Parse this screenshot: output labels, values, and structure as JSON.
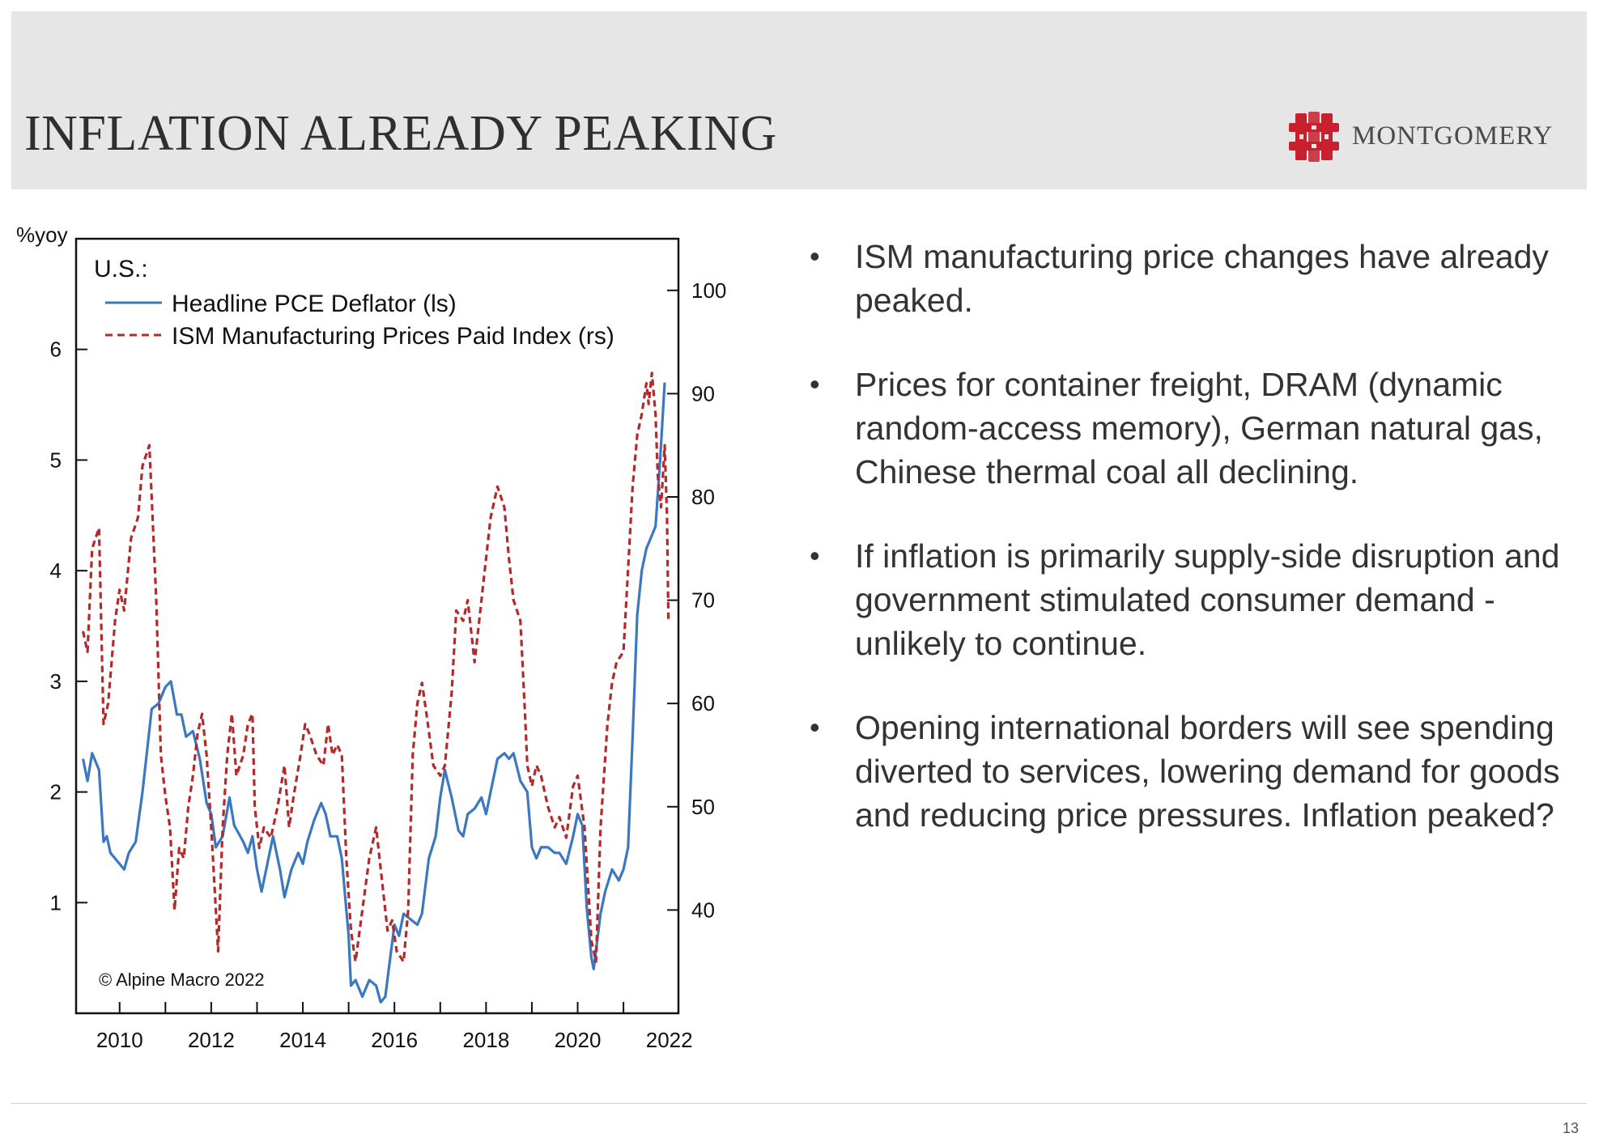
{
  "slide": {
    "title": "INFLATION ALREADY PEAKING",
    "brand": "MONTGOMERY",
    "page_number": "13",
    "colors": {
      "header_bg": "#e6e6e6",
      "logo": "#c8202f"
    },
    "logo_icon": "montgomery-monogram-icon",
    "bullets": [
      "ISM manufacturing price changes have already peaked.",
      "Prices for container freight, DRAM (dynamic random-access memory), German natural gas, Chinese thermal coal all declining.",
      "If inflation is primarily supply-side disruption and government stimulated consumer demand - unlikely to continue.",
      "Opening international borders will see spending diverted to services, lowering demand for goods and reducing price pressures.  Inflation peaked?"
    ]
  },
  "chart_data": {
    "type": "line",
    "left_unit_label": "%yoy",
    "legend_title": "U.S.:",
    "legend_position": "top-left",
    "credit": "© Alpine Macro 2022",
    "grid": false,
    "x_ticks": [
      "2010",
      "2012",
      "2014",
      "2016",
      "2018",
      "2020",
      "2022"
    ],
    "xlim": [
      2009.05,
      2022.2
    ],
    "left_axis": {
      "ylim": [
        0,
        7
      ],
      "ticks": [
        1,
        2,
        3,
        4,
        5,
        6
      ]
    },
    "right_axis": {
      "ylim": [
        30,
        105
      ],
      "ticks": [
        40,
        50,
        60,
        70,
        80,
        90,
        100
      ]
    },
    "series": [
      {
        "name": "Headline PCE Deflator (ls)",
        "axis": "left",
        "color": "#3b78c0",
        "style": "solid",
        "points": [
          [
            2009.2,
            2.3
          ],
          [
            2009.3,
            2.1
          ],
          [
            2009.4,
            2.35
          ],
          [
            2009.55,
            2.2
          ],
          [
            2009.65,
            1.55
          ],
          [
            2009.72,
            1.6
          ],
          [
            2009.8,
            1.45
          ],
          [
            2010.0,
            1.35
          ],
          [
            2010.1,
            1.3
          ],
          [
            2010.2,
            1.45
          ],
          [
            2010.35,
            1.55
          ],
          [
            2010.5,
            2.0
          ],
          [
            2010.7,
            2.75
          ],
          [
            2010.85,
            2.8
          ],
          [
            2011.0,
            2.95
          ],
          [
            2011.12,
            3.0
          ],
          [
            2011.25,
            2.7
          ],
          [
            2011.35,
            2.7
          ],
          [
            2011.45,
            2.5
          ],
          [
            2011.6,
            2.55
          ],
          [
            2011.75,
            2.3
          ],
          [
            2011.9,
            1.9
          ],
          [
            2012.0,
            1.8
          ],
          [
            2012.1,
            1.5
          ],
          [
            2012.25,
            1.6
          ],
          [
            2012.4,
            1.95
          ],
          [
            2012.5,
            1.7
          ],
          [
            2012.7,
            1.55
          ],
          [
            2012.8,
            1.45
          ],
          [
            2012.9,
            1.6
          ],
          [
            2013.0,
            1.3
          ],
          [
            2013.1,
            1.1
          ],
          [
            2013.2,
            1.3
          ],
          [
            2013.35,
            1.6
          ],
          [
            2013.5,
            1.3
          ],
          [
            2013.6,
            1.05
          ],
          [
            2013.75,
            1.3
          ],
          [
            2013.9,
            1.45
          ],
          [
            2014.0,
            1.35
          ],
          [
            2014.1,
            1.55
          ],
          [
            2014.25,
            1.75
          ],
          [
            2014.4,
            1.9
          ],
          [
            2014.5,
            1.8
          ],
          [
            2014.6,
            1.6
          ],
          [
            2014.75,
            1.6
          ],
          [
            2014.85,
            1.4
          ],
          [
            2015.0,
            0.7
          ],
          [
            2015.05,
            0.25
          ],
          [
            2015.15,
            0.3
          ],
          [
            2015.3,
            0.15
          ],
          [
            2015.45,
            0.3
          ],
          [
            2015.6,
            0.25
          ],
          [
            2015.7,
            0.1
          ],
          [
            2015.8,
            0.15
          ],
          [
            2016.0,
            0.8
          ],
          [
            2016.1,
            0.7
          ],
          [
            2016.2,
            0.9
          ],
          [
            2016.35,
            0.85
          ],
          [
            2016.5,
            0.8
          ],
          [
            2016.6,
            0.9
          ],
          [
            2016.75,
            1.4
          ],
          [
            2016.9,
            1.6
          ],
          [
            2017.0,
            1.95
          ],
          [
            2017.1,
            2.2
          ],
          [
            2017.25,
            1.95
          ],
          [
            2017.4,
            1.65
          ],
          [
            2017.5,
            1.6
          ],
          [
            2017.6,
            1.8
          ],
          [
            2017.75,
            1.85
          ],
          [
            2017.9,
            1.95
          ],
          [
            2018.0,
            1.8
          ],
          [
            2018.1,
            2.0
          ],
          [
            2018.25,
            2.3
          ],
          [
            2018.4,
            2.35
          ],
          [
            2018.5,
            2.3
          ],
          [
            2018.6,
            2.35
          ],
          [
            2018.75,
            2.1
          ],
          [
            2018.9,
            2.0
          ],
          [
            2019.0,
            1.5
          ],
          [
            2019.1,
            1.4
          ],
          [
            2019.2,
            1.5
          ],
          [
            2019.35,
            1.5
          ],
          [
            2019.5,
            1.45
          ],
          [
            2019.6,
            1.45
          ],
          [
            2019.75,
            1.35
          ],
          [
            2019.9,
            1.6
          ],
          [
            2020.0,
            1.8
          ],
          [
            2020.1,
            1.7
          ],
          [
            2020.2,
            0.95
          ],
          [
            2020.3,
            0.5
          ],
          [
            2020.35,
            0.4
          ],
          [
            2020.5,
            0.9
          ],
          [
            2020.6,
            1.1
          ],
          [
            2020.75,
            1.3
          ],
          [
            2020.9,
            1.2
          ],
          [
            2021.0,
            1.3
          ],
          [
            2021.1,
            1.5
          ],
          [
            2021.2,
            2.5
          ],
          [
            2021.3,
            3.6
          ],
          [
            2021.4,
            4.0
          ],
          [
            2021.5,
            4.2
          ],
          [
            2021.6,
            4.3
          ],
          [
            2021.7,
            4.4
          ],
          [
            2021.8,
            5.0
          ],
          [
            2021.9,
            5.7
          ]
        ]
      },
      {
        "name": "ISM Manufacturing Prices Paid Index (rs)",
        "axis": "right",
        "color": "#b22a2a",
        "style": "dashed",
        "points": [
          [
            2009.2,
            67
          ],
          [
            2009.3,
            65
          ],
          [
            2009.4,
            75
          ],
          [
            2009.55,
            77
          ],
          [
            2009.65,
            58
          ],
          [
            2009.75,
            60
          ],
          [
            2009.9,
            68
          ],
          [
            2010.0,
            71
          ],
          [
            2010.1,
            69
          ],
          [
            2010.25,
            76
          ],
          [
            2010.4,
            78
          ],
          [
            2010.5,
            83
          ],
          [
            2010.65,
            85
          ],
          [
            2010.8,
            70
          ],
          [
            2010.9,
            55
          ],
          [
            2011.0,
            51
          ],
          [
            2011.1,
            48
          ],
          [
            2011.2,
            40
          ],
          [
            2011.3,
            46
          ],
          [
            2011.4,
            45
          ],
          [
            2011.5,
            50
          ],
          [
            2011.6,
            53
          ],
          [
            2011.7,
            57
          ],
          [
            2011.8,
            59
          ],
          [
            2011.9,
            55
          ],
          [
            2012.0,
            48
          ],
          [
            2012.1,
            40
          ],
          [
            2012.15,
            36
          ],
          [
            2012.25,
            48
          ],
          [
            2012.35,
            55
          ],
          [
            2012.45,
            59
          ],
          [
            2012.55,
            53
          ],
          [
            2012.7,
            55
          ],
          [
            2012.8,
            58
          ],
          [
            2012.9,
            59
          ],
          [
            2012.95,
            50
          ],
          [
            2013.05,
            46
          ],
          [
            2013.15,
            48
          ],
          [
            2013.3,
            47
          ],
          [
            2013.45,
            50
          ],
          [
            2013.6,
            54
          ],
          [
            2013.7,
            48
          ],
          [
            2013.8,
            51
          ],
          [
            2013.95,
            55
          ],
          [
            2014.05,
            58
          ],
          [
            2014.15,
            57
          ],
          [
            2014.3,
            55
          ],
          [
            2014.45,
            54
          ],
          [
            2014.55,
            58
          ],
          [
            2014.65,
            55
          ],
          [
            2014.75,
            56
          ],
          [
            2014.85,
            55
          ],
          [
            2014.95,
            45
          ],
          [
            2015.05,
            38
          ],
          [
            2015.15,
            35
          ],
          [
            2015.3,
            40
          ],
          [
            2015.45,
            45
          ],
          [
            2015.6,
            48
          ],
          [
            2015.7,
            44
          ],
          [
            2015.85,
            38
          ],
          [
            2015.95,
            39
          ],
          [
            2016.05,
            36
          ],
          [
            2016.2,
            35
          ],
          [
            2016.3,
            40
          ],
          [
            2016.4,
            55
          ],
          [
            2016.5,
            60
          ],
          [
            2016.6,
            62
          ],
          [
            2016.7,
            59
          ],
          [
            2016.85,
            54
          ],
          [
            2017.0,
            53
          ],
          [
            2017.1,
            54
          ],
          [
            2017.25,
            61
          ],
          [
            2017.35,
            69
          ],
          [
            2017.5,
            68
          ],
          [
            2017.6,
            70
          ],
          [
            2017.75,
            64
          ],
          [
            2017.85,
            68
          ],
          [
            2017.95,
            72
          ],
          [
            2018.1,
            78
          ],
          [
            2018.25,
            81
          ],
          [
            2018.4,
            79
          ],
          [
            2018.5,
            74
          ],
          [
            2018.6,
            70
          ],
          [
            2018.75,
            68
          ],
          [
            2018.85,
            59
          ],
          [
            2018.9,
            54
          ],
          [
            2019.0,
            52
          ],
          [
            2019.1,
            54
          ],
          [
            2019.2,
            53
          ],
          [
            2019.35,
            50
          ],
          [
            2019.5,
            48
          ],
          [
            2019.6,
            49
          ],
          [
            2019.75,
            47
          ],
          [
            2019.9,
            52
          ],
          [
            2020.0,
            53
          ],
          [
            2020.15,
            48
          ],
          [
            2020.3,
            37
          ],
          [
            2020.4,
            35
          ],
          [
            2020.5,
            48
          ],
          [
            2020.65,
            58
          ],
          [
            2020.75,
            62
          ],
          [
            2020.85,
            64
          ],
          [
            2021.0,
            65
          ],
          [
            2021.1,
            73
          ],
          [
            2021.2,
            81
          ],
          [
            2021.3,
            86
          ],
          [
            2021.4,
            88
          ],
          [
            2021.5,
            91
          ],
          [
            2021.55,
            89
          ],
          [
            2021.62,
            92
          ],
          [
            2021.7,
            88
          ],
          [
            2021.75,
            82
          ],
          [
            2021.82,
            79
          ],
          [
            2021.9,
            85
          ],
          [
            2021.95,
            78
          ],
          [
            2021.98,
            68
          ]
        ]
      }
    ]
  }
}
